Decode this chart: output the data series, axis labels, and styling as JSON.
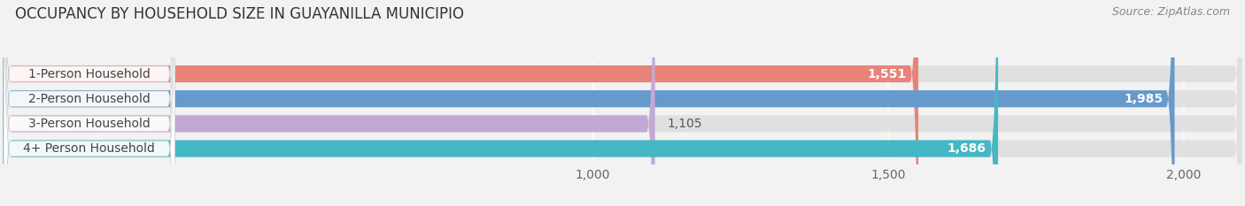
{
  "title": "OCCUPANCY BY HOUSEHOLD SIZE IN GUAYANILLA MUNICIPIO",
  "source": "Source: ZipAtlas.com",
  "categories": [
    "1-Person Household",
    "2-Person Household",
    "3-Person Household",
    "4+ Person Household"
  ],
  "values": [
    1551,
    1985,
    1105,
    1686
  ],
  "bar_colors": [
    "#E8837A",
    "#6699CC",
    "#C4A8D4",
    "#44B8C4"
  ],
  "xlim": [
    0,
    2100
  ],
  "xticks": [
    1000,
    1500,
    2000
  ],
  "xtick_labels": [
    "1,000",
    "1,500",
    "2,000"
  ],
  "title_fontsize": 12,
  "source_fontsize": 9,
  "bar_label_fontsize": 10,
  "tick_fontsize": 10,
  "category_fontsize": 10,
  "background_color": "#f2f2f2",
  "bar_background_color": "#e0e0e0",
  "figsize": [
    14.06,
    2.33
  ],
  "dpi": 100
}
